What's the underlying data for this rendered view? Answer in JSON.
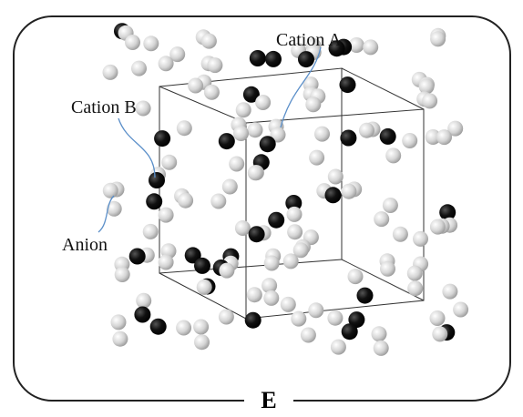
{
  "labels": {
    "cation_a": "Cation A",
    "cation_b": "Cation B",
    "anion": "Anion"
  },
  "panel_label": "E"
}
